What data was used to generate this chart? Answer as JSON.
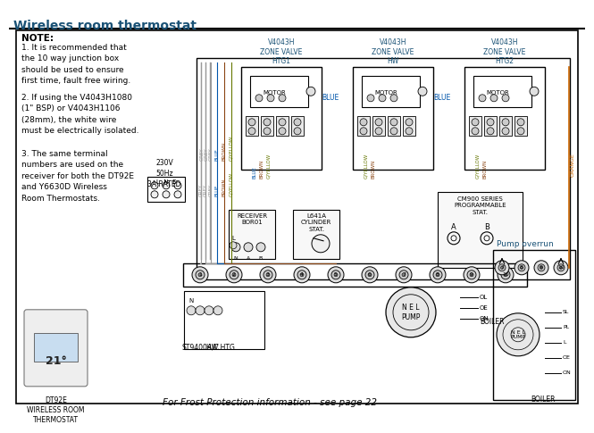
{
  "title": "Wireless room thermostat",
  "title_color": "#1a5276",
  "bg_color": "#ffffff",
  "bc": "#000000",
  "tc": "#1a5276",
  "note_text": "NOTE:",
  "note1": "1. It is recommended that\nthe 10 way junction box\nshould be used to ensure\nfirst time, fault free wiring.",
  "note2": "2. If using the V4043H1080\n(1\" BSP) or V4043H1106\n(28mm), the white wire\nmust be electrically isolated.",
  "note3": "3. The same terminal\nnumbers are used on the\nreceiver for both the DT92E\nand Y6630D Wireless\nRoom Thermostats.",
  "bottom_note": "For Frost Protection information - see page 22",
  "dt92e_label": "DT92E\nWIRELESS ROOM\nTHERMOSTAT",
  "valve1_label": "V4043H\nZONE VALVE\nHTG1",
  "valve2_label": "V4043H\nZONE VALVE\nHW",
  "valve3_label": "V4043H\nZONE VALVE\nHTG2",
  "pump_overrun_label": "Pump overrun",
  "receiver_label": "RECEIVER\nBOR01",
  "cylinder_label": "L641A\nCYLINDER\nSTAT.",
  "cm900_label": "CM900 SERIES\nPROGRAMMABLE\nSTAT.",
  "st9400_label": "ST9400A/C",
  "hw_htg_label": "HW HTG",
  "boiler_label": "BOILER",
  "power_label": "230V\n50Hz\n3A RATED",
  "motor_label": "MOTOR",
  "grey": "#888888",
  "blue_c": "#0055aa",
  "brown": "#8B4513",
  "orange": "#cc6600",
  "gyellow": "#667700",
  "wire_grey": "#999999"
}
